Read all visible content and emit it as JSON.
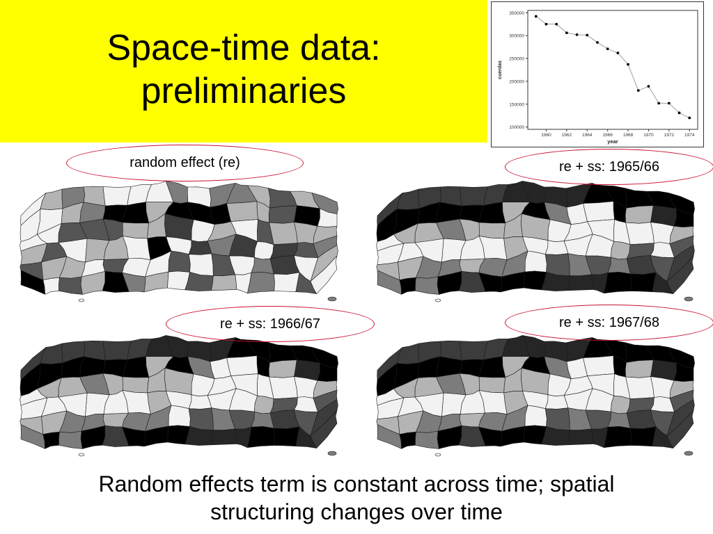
{
  "slide": {
    "title_line1": "Space-time data:",
    "title_line2": "preliminaries",
    "caption_line1": "Random effects term is constant across time; spatial",
    "caption_line2": "structuring changes over time",
    "banner_color": "#ffff00",
    "accent_color": "#c8102e"
  },
  "panels": [
    {
      "label": "random effect (re)",
      "shades": [
        6,
        5,
        4,
        5,
        6,
        6,
        6,
        4,
        6,
        4,
        4,
        5,
        3,
        5,
        4,
        6,
        6,
        5,
        4,
        0,
        0,
        5,
        0,
        0,
        0,
        5,
        5,
        3,
        0,
        6,
        6,
        6,
        3,
        3,
        3,
        5,
        5,
        2,
        6,
        5,
        6,
        3,
        5,
        5,
        5,
        5,
        3,
        6,
        5,
        5,
        6,
        0,
        6,
        2,
        4,
        2,
        6,
        2,
        3,
        4,
        3,
        5,
        5,
        6,
        3,
        6,
        6,
        3,
        6,
        3,
        6,
        4,
        2,
        6,
        5,
        0,
        6,
        3,
        5,
        0,
        4,
        5,
        6,
        3,
        5,
        6,
        4,
        6,
        3,
        6,
        5,
        6,
        3,
        5,
        5,
        6,
        3,
        5,
        0,
        5
      ]
    },
    {
      "label": "re + ss: 1965/66",
      "shades": [
        2,
        2,
        2,
        2,
        2,
        2,
        1,
        1,
        1,
        1,
        0,
        0,
        0,
        0,
        0,
        0,
        0,
        0,
        0,
        0,
        0,
        5,
        0,
        4,
        6,
        6,
        0,
        5,
        1,
        0,
        6,
        5,
        5,
        4,
        5,
        5,
        5,
        5,
        6,
        6,
        6,
        6,
        6,
        6,
        5,
        6,
        6,
        6,
        6,
        6,
        6,
        5,
        6,
        6,
        6,
        6,
        5,
        3,
        6,
        3,
        5,
        5,
        4,
        4,
        5,
        4,
        4,
        6,
        3,
        4,
        3,
        4,
        2,
        3,
        2,
        4,
        0,
        4,
        0,
        2,
        0,
        0,
        0,
        1,
        1,
        1,
        0,
        0,
        1,
        2,
        0,
        0,
        1,
        0,
        1,
        2,
        1,
        0,
        1,
        2
      ]
    },
    {
      "label": "re + ss: 1966/67",
      "shades": [
        2,
        2,
        2,
        2,
        2,
        2,
        1,
        1,
        1,
        1,
        0,
        0,
        0,
        0,
        0,
        0,
        0,
        0,
        0,
        0,
        0,
        5,
        0,
        4,
        6,
        6,
        0,
        5,
        1,
        0,
        6,
        5,
        5,
        4,
        5,
        5,
        5,
        5,
        6,
        6,
        6,
        6,
        6,
        6,
        5,
        6,
        6,
        6,
        6,
        6,
        6,
        5,
        6,
        6,
        6,
        6,
        5,
        3,
        6,
        3,
        5,
        5,
        4,
        4,
        5,
        4,
        4,
        6,
        3,
        4,
        3,
        4,
        2,
        3,
        2,
        4,
        0,
        4,
        0,
        2,
        0,
        0,
        0,
        1,
        1,
        1,
        0,
        0,
        1,
        2,
        0,
        0,
        1,
        0,
        1,
        2,
        1,
        0,
        1,
        2
      ]
    },
    {
      "label": "re + ss: 1967/68",
      "shades": [
        2,
        2,
        2,
        2,
        2,
        2,
        1,
        1,
        1,
        1,
        0,
        0,
        0,
        0,
        0,
        0,
        0,
        0,
        0,
        0,
        0,
        5,
        0,
        4,
        6,
        6,
        0,
        5,
        1,
        0,
        6,
        5,
        5,
        4,
        5,
        5,
        5,
        5,
        6,
        6,
        6,
        6,
        6,
        6,
        5,
        6,
        6,
        6,
        6,
        6,
        6,
        5,
        6,
        6,
        6,
        6,
        5,
        3,
        6,
        3,
        5,
        5,
        4,
        4,
        5,
        4,
        4,
        6,
        3,
        4,
        3,
        4,
        2,
        3,
        2,
        4,
        0,
        4,
        0,
        2,
        0,
        0,
        0,
        1,
        1,
        1,
        0,
        0,
        1,
        2,
        0,
        0,
        1,
        0,
        1,
        2,
        1,
        0,
        1,
        2
      ]
    }
  ],
  "palette": [
    "#000000",
    "#262626",
    "#3c3c3c",
    "#555555",
    "#7c7c7c",
    "#b4b4b4",
    "#f2f2f2"
  ],
  "chart_data": {
    "type": "line",
    "x": [
      1959,
      1960,
      1961,
      1962,
      1963,
      1964,
      1965,
      1966,
      1967,
      1968,
      1969,
      1970,
      1971,
      1972,
      1973,
      1974
    ],
    "y": [
      342000,
      325000,
      325000,
      306000,
      302000,
      301000,
      285000,
      271000,
      262000,
      237000,
      180000,
      189000,
      152000,
      152000,
      131000,
      120000
    ],
    "xlabel": "year",
    "ylabel": "cuerdas",
    "xticks": [
      "1960",
      "1962",
      "1964",
      "1966",
      "1968",
      "1970",
      "1972",
      "1974"
    ],
    "yticks": [
      "100000",
      "150000",
      "200000",
      "250000",
      "300000",
      "350000"
    ],
    "xlim": [
      1958.2,
      1974.8
    ],
    "ylim": [
      95000,
      355000
    ],
    "grid": false
  }
}
